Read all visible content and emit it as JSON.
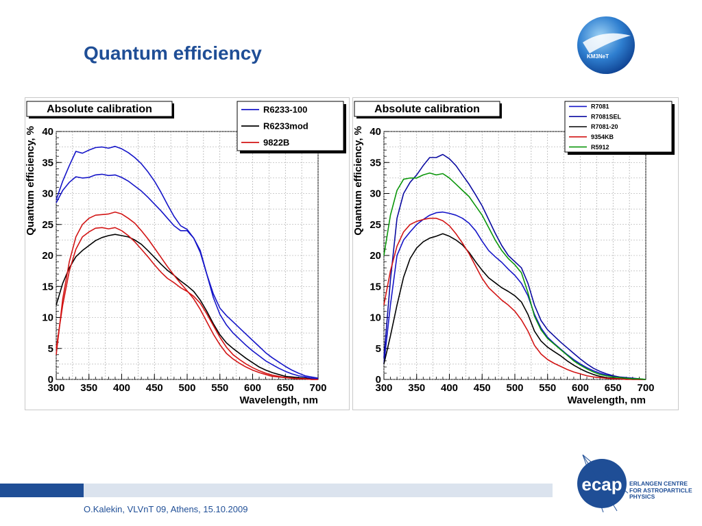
{
  "slide": {
    "title": "Quantum efficiency",
    "footer": "O.Kalekin, VLVnT 09, Athens, 15.10.2009",
    "km3net_logo_text": "KM3NeT",
    "ecap_logo_text": "ecap",
    "ecap_lines": [
      "ERLANGEN CENTRE",
      "FOR ASTROPARTICLE",
      "PHYSICS"
    ],
    "colors": {
      "title": "#1f4e96",
      "bar_dark": "#1f4e96",
      "bar_light": "#dbe3ee"
    }
  },
  "chart_data": [
    {
      "type": "line",
      "title": "Absolute calibration",
      "xlabel": "Wavelength, nm",
      "ylabel": "Quantum efficiency, %",
      "xlim": [
        300,
        700
      ],
      "ylim": [
        0,
        40
      ],
      "xticks": [
        300,
        350,
        400,
        450,
        500,
        550,
        600,
        650,
        700
      ],
      "yticks": [
        0,
        5,
        10,
        15,
        20,
        25,
        30,
        35,
        40
      ],
      "grid": true,
      "legend_position": "top-right",
      "series": [
        {
          "name": "R6233-100",
          "color": "#1414c8",
          "x": [
            300,
            310,
            320,
            330,
            340,
            350,
            360,
            370,
            380,
            390,
            400,
            410,
            420,
            430,
            440,
            450,
            460,
            470,
            480,
            490,
            500,
            510,
            520,
            530,
            540,
            550,
            560,
            570,
            580,
            590,
            600,
            610,
            620,
            630,
            640,
            650,
            660,
            670,
            680,
            690,
            700
          ],
          "y": [
            29.0,
            32.0,
            34.5,
            36.8,
            36.5,
            37.0,
            37.4,
            37.5,
            37.3,
            37.6,
            37.2,
            36.6,
            35.8,
            34.8,
            33.5,
            32.0,
            30.2,
            28.2,
            26.3,
            24.8,
            24.2,
            22.8,
            20.5,
            17.0,
            13.8,
            11.5,
            10.3,
            9.3,
            8.3,
            7.3,
            6.3,
            5.3,
            4.3,
            3.5,
            2.8,
            2.1,
            1.5,
            1.0,
            0.6,
            0.4,
            0.2
          ]
        },
        {
          "name": "R6233mod",
          "color": "#000000",
          "x": [
            300,
            310,
            320,
            330,
            340,
            350,
            360,
            370,
            380,
            390,
            400,
            410,
            420,
            430,
            440,
            450,
            460,
            470,
            480,
            490,
            500,
            510,
            520,
            530,
            540,
            550,
            560,
            570,
            580,
            590,
            600,
            610,
            620,
            630,
            640,
            650,
            660,
            670,
            680,
            690,
            700
          ],
          "y": [
            12.0,
            15.5,
            18.0,
            19.8,
            20.8,
            21.6,
            22.4,
            22.9,
            23.2,
            23.4,
            23.2,
            23.0,
            22.5,
            21.8,
            20.8,
            19.7,
            18.6,
            17.6,
            16.8,
            15.9,
            15.1,
            14.2,
            12.8,
            11.0,
            9.0,
            7.2,
            5.9,
            5.0,
            4.2,
            3.4,
            2.7,
            2.0,
            1.5,
            1.1,
            0.8,
            0.5,
            0.4,
            0.3,
            0.2,
            0.1,
            0.1
          ]
        },
        {
          "name": "9822B",
          "color": "#d21414",
          "x": [
            300,
            310,
            320,
            330,
            340,
            350,
            360,
            370,
            380,
            390,
            400,
            410,
            420,
            430,
            440,
            450,
            460,
            470,
            480,
            490,
            500,
            510,
            520,
            530,
            540,
            550,
            560,
            570,
            580,
            590,
            600,
            610,
            620,
            630,
            640,
            650,
            660,
            670,
            680,
            690,
            700
          ],
          "y": [
            4.0,
            13.0,
            19.0,
            23.0,
            25.0,
            26.0,
            26.5,
            26.6,
            26.7,
            27.0,
            26.7,
            26.0,
            25.2,
            24.0,
            22.7,
            21.2,
            19.7,
            18.2,
            16.8,
            15.5,
            14.3,
            13.0,
            11.3,
            9.3,
            7.3,
            5.6,
            4.2,
            3.3,
            2.6,
            2.0,
            1.5,
            1.1,
            0.8,
            0.5,
            0.4,
            0.3,
            0.2,
            0.1,
            0.1,
            0.0,
            0.0
          ]
        },
        {
          "name": "",
          "color": "#1414c8",
          "x": [
            300,
            310,
            320,
            330,
            340,
            350,
            360,
            370,
            380,
            390,
            400,
            410,
            420,
            430,
            440,
            450,
            460,
            470,
            480,
            490,
            500,
            510,
            520,
            530,
            540,
            550,
            560,
            570,
            580,
            590,
            600,
            610,
            620,
            630,
            640,
            650,
            660,
            670,
            680,
            690,
            700
          ],
          "y": [
            28.5,
            30.5,
            31.8,
            32.7,
            32.5,
            32.6,
            33.0,
            33.1,
            32.9,
            33.0,
            32.6,
            32.0,
            31.2,
            30.4,
            29.4,
            28.3,
            27.2,
            26.0,
            24.8,
            24.0,
            24.0,
            22.8,
            20.8,
            17.0,
            13.2,
            10.5,
            8.8,
            7.5,
            6.5,
            5.5,
            4.6,
            3.8,
            3.0,
            2.4,
            1.8,
            1.3,
            0.9,
            0.6,
            0.4,
            0.2,
            0.1
          ]
        },
        {
          "name": "",
          "color": "#d21414",
          "x": [
            300,
            310,
            320,
            330,
            340,
            350,
            360,
            370,
            380,
            390,
            400,
            410,
            420,
            430,
            440,
            450,
            460,
            470,
            480,
            490,
            500,
            510,
            520,
            530,
            540,
            550,
            560,
            570,
            580,
            590,
            600,
            610,
            620,
            630,
            640,
            650,
            660,
            670,
            680,
            690,
            700
          ],
          "y": [
            5.0,
            12.0,
            17.5,
            21.0,
            23.0,
            23.8,
            24.4,
            24.5,
            24.3,
            24.5,
            24.0,
            23.2,
            22.2,
            21.0,
            19.8,
            18.5,
            17.3,
            16.3,
            15.6,
            14.8,
            14.2,
            13.4,
            12.3,
            10.6,
            8.7,
            6.8,
            5.2,
            4.0,
            3.2,
            2.5,
            1.9,
            1.4,
            1.0,
            0.7,
            0.5,
            0.3,
            0.2,
            0.1,
            0.1,
            0.0,
            0.0
          ]
        }
      ]
    },
    {
      "type": "line",
      "title": "Absolute calibration",
      "xlabel": "Wavelength, nm",
      "ylabel": "Quantum efficiency, %",
      "xlim": [
        300,
        700
      ],
      "ylim": [
        0,
        40
      ],
      "xticks": [
        300,
        350,
        400,
        450,
        500,
        550,
        600,
        650,
        700
      ],
      "yticks": [
        0,
        5,
        10,
        15,
        20,
        25,
        30,
        35,
        40
      ],
      "grid": true,
      "legend_position": "top-right",
      "series": [
        {
          "name": "R7081",
          "color": "#1414c8",
          "x": [
            300,
            310,
            320,
            330,
            340,
            350,
            360,
            370,
            380,
            390,
            400,
            410,
            420,
            430,
            440,
            450,
            460,
            470,
            480,
            490,
            500,
            510,
            520,
            530,
            540,
            550,
            560,
            570,
            580,
            590,
            600,
            610,
            620,
            630,
            640,
            650,
            660,
            670,
            680,
            690,
            700
          ],
          "y": [
            2.5,
            12.0,
            20.0,
            22.5,
            23.8,
            25.0,
            25.8,
            26.5,
            26.9,
            27.0,
            26.8,
            26.5,
            26.0,
            25.2,
            24.0,
            22.3,
            20.8,
            19.8,
            18.9,
            17.8,
            16.8,
            15.5,
            13.5,
            10.5,
            8.3,
            6.8,
            5.8,
            4.9,
            4.0,
            3.2,
            2.5,
            1.9,
            1.4,
            1.0,
            0.7,
            0.5,
            0.3,
            0.2,
            0.1,
            0.0,
            0.0
          ]
        },
        {
          "name": "R7081SEL",
          "color": "#0a0aa0",
          "x": [
            300,
            310,
            320,
            330,
            340,
            350,
            360,
            370,
            380,
            390,
            400,
            410,
            420,
            430,
            440,
            450,
            460,
            470,
            480,
            490,
            500,
            510,
            520,
            530,
            540,
            550,
            560,
            570,
            580,
            590,
            600,
            610,
            620,
            630,
            640,
            650,
            660,
            670,
            680,
            690,
            700
          ],
          "y": [
            3.5,
            16.0,
            26.0,
            30.0,
            31.8,
            33.0,
            34.5,
            35.8,
            35.8,
            36.3,
            35.6,
            34.5,
            33.0,
            31.5,
            29.8,
            28.0,
            25.8,
            23.6,
            21.6,
            20.0,
            19.0,
            18.0,
            15.5,
            12.0,
            9.5,
            8.0,
            7.0,
            6.0,
            5.1,
            4.2,
            3.3,
            2.5,
            1.8,
            1.3,
            0.9,
            0.6,
            0.4,
            0.3,
            0.2,
            0.1,
            0.0
          ]
        },
        {
          "name": "R7081-20",
          "color": "#000000",
          "x": [
            300,
            310,
            320,
            330,
            340,
            350,
            360,
            370,
            380,
            390,
            400,
            410,
            420,
            430,
            440,
            450,
            460,
            470,
            480,
            490,
            500,
            510,
            520,
            530,
            540,
            550,
            560,
            570,
            580,
            590,
            600,
            610,
            620,
            630,
            640,
            650,
            660,
            670,
            680,
            690,
            700
          ],
          "y": [
            2.5,
            7.0,
            12.0,
            16.5,
            19.5,
            21.2,
            22.2,
            22.8,
            23.1,
            23.5,
            23.1,
            22.5,
            21.7,
            20.5,
            19.0,
            17.6,
            16.4,
            15.6,
            14.8,
            14.2,
            13.5,
            12.5,
            10.5,
            7.8,
            6.2,
            5.2,
            4.5,
            3.8,
            3.0,
            2.3,
            1.7,
            1.2,
            0.8,
            0.5,
            0.3,
            0.2,
            0.1,
            0.1,
            0.0,
            0.0,
            0.0
          ]
        },
        {
          "name": "9354KB",
          "color": "#d21414",
          "x": [
            300,
            310,
            320,
            330,
            340,
            350,
            360,
            370,
            380,
            390,
            400,
            410,
            420,
            430,
            440,
            450,
            460,
            470,
            480,
            490,
            500,
            510,
            520,
            530,
            540,
            550,
            560,
            570,
            580,
            590,
            600,
            610,
            620,
            630,
            640,
            650,
            660,
            670,
            680,
            690,
            700
          ],
          "y": [
            12.0,
            17.5,
            21.5,
            23.8,
            25.0,
            25.5,
            25.8,
            26.0,
            26.0,
            25.6,
            24.8,
            23.5,
            22.0,
            20.3,
            18.3,
            16.3,
            14.8,
            13.8,
            12.8,
            12.0,
            11.0,
            9.6,
            7.8,
            5.5,
            4.1,
            3.2,
            2.6,
            2.1,
            1.6,
            1.2,
            0.9,
            0.6,
            0.4,
            0.3,
            0.2,
            0.1,
            0.1,
            0.0,
            0.0,
            0.0,
            0.0
          ]
        },
        {
          "name": "R5912",
          "color": "#0a960a",
          "x": [
            300,
            310,
            320,
            330,
            340,
            350,
            360,
            370,
            380,
            390,
            400,
            410,
            420,
            430,
            440,
            450,
            460,
            470,
            480,
            490,
            500,
            510,
            520,
            530,
            540,
            550,
            560,
            570,
            580,
            590,
            600,
            610,
            620,
            630,
            640,
            650,
            660,
            670,
            680,
            690,
            700
          ],
          "y": [
            20.0,
            26.5,
            30.5,
            32.3,
            32.5,
            32.5,
            33.0,
            33.3,
            33.0,
            33.2,
            32.5,
            31.5,
            30.5,
            29.5,
            28.0,
            26.5,
            24.5,
            22.5,
            20.8,
            19.5,
            18.5,
            17.2,
            14.0,
            10.2,
            8.0,
            6.6,
            5.7,
            4.8,
            3.9,
            3.0,
            2.3,
            1.7,
            1.2,
            0.8,
            0.6,
            0.4,
            0.3,
            0.2,
            0.1,
            0.1,
            0.0
          ]
        }
      ]
    }
  ]
}
